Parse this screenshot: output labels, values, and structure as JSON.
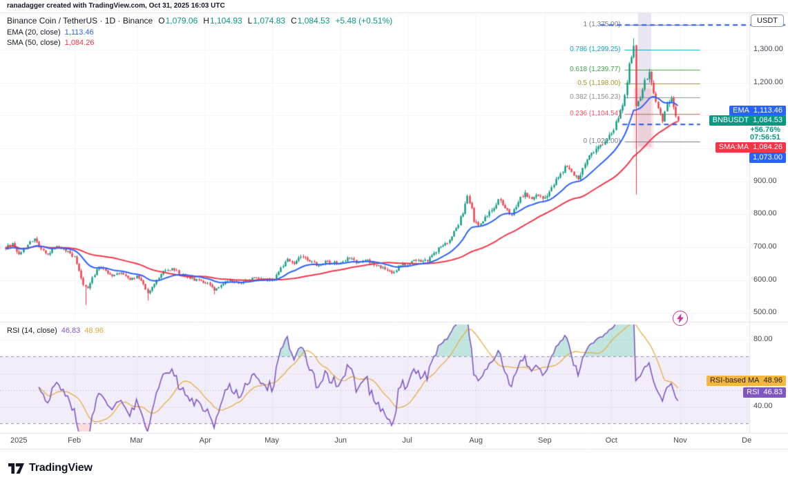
{
  "meta": {
    "attribution": "ranadagger created with TradingView.com, Oct 31, 2025 16:03 UTC"
  },
  "legend": {
    "title": "Binance Coin / TetherUS · 1D · Binance",
    "ohlc": {
      "o_label": "O",
      "o_value": "1,079.06",
      "h_label": "H",
      "h_value": "1,104.93",
      "l_label": "L",
      "l_value": "1,074.83",
      "c_label": "C",
      "c_value": "1,084.53",
      "change": "+5.48 (+0.51%)"
    },
    "ema_label": "EMA (20, close)",
    "ema_value": "1,113.46",
    "sma_label": "SMA (50, close)",
    "sma_value": "1,084.26"
  },
  "rsi_legend": {
    "label": "RSI (14, close)",
    "rsi_value": "46.83",
    "ma_value": "48.96"
  },
  "price_axis": {
    "currency": "USDT",
    "labels": [
      {
        "text": "1,300.00",
        "price": 1300
      },
      {
        "text": "1,200.00",
        "price": 1200
      },
      {
        "text": "900.00",
        "price": 900
      },
      {
        "text": "800.00",
        "price": 800
      },
      {
        "text": "700.00",
        "price": 700
      },
      {
        "text": "600.00",
        "price": 600
      },
      {
        "text": "500.00",
        "price": 500
      }
    ]
  },
  "rsi_axis": {
    "labels": [
      {
        "text": "80.00",
        "value": 80
      },
      {
        "text": "40.00",
        "value": 40
      }
    ]
  },
  "time_axis": {
    "labels": [
      {
        "text": "2025",
        "day": 6
      },
      {
        "text": "Feb",
        "day": 31
      },
      {
        "text": "Mar",
        "day": 59
      },
      {
        "text": "Apr",
        "day": 90
      },
      {
        "text": "May",
        "day": 120
      },
      {
        "text": "Jun",
        "day": 151
      },
      {
        "text": "Jul",
        "day": 181
      },
      {
        "text": "Aug",
        "day": 212
      },
      {
        "text": "Sep",
        "day": 243
      },
      {
        "text": "Oct",
        "day": 273
      },
      {
        "text": "Nov",
        "day": 304
      },
      {
        "text": "De",
        "day": 334
      }
    ]
  },
  "axis_badges": {
    "ema_name": "EMA",
    "ema_value": "1,113.46",
    "symbol_name": "BNBUSDT",
    "symbol_value": "1,084.53",
    "change_pct": "+56.76%",
    "countdown": "07:56:51",
    "sma_name": "SMA:MA",
    "sma_value": "1,084.26",
    "level_value": "1,073.00"
  },
  "rsi_badges": {
    "ma_name": "RSI-based MA",
    "ma_value": "48.96",
    "rsi_name": "RSI",
    "rsi_value": "46.83"
  },
  "footer": {
    "brand": "TradingView"
  },
  "colors": {
    "up": "#089981",
    "down": "#F23645",
    "ema": "#2962FF",
    "sma": "#F23645",
    "rsi": "#7E57C2",
    "rsi_ma": "#E8B14E",
    "drawing_blue": "#1E53E5",
    "grid": "#F0F3FA",
    "border": "#E0E3EB"
  },
  "chart_data": {
    "type": "candlestick",
    "symbol": "BNBUSDT",
    "interval": "1D",
    "title": "Binance Coin / TetherUS, Daily, with EMA(20), SMA(50), Fibonacci retracement and RSI(14) sub-panel",
    "visible_range": "Jan 2025 - Dec 2025",
    "last_close": 1084.53,
    "price_anchors": [
      [
        0,
        695
      ],
      [
        3,
        712
      ],
      [
        6,
        678
      ],
      [
        9,
        698
      ],
      [
        13,
        726
      ],
      [
        16,
        694
      ],
      [
        19,
        678
      ],
      [
        23,
        703
      ],
      [
        27,
        688
      ],
      [
        31,
        672
      ],
      [
        33,
        628
      ],
      [
        35,
        585
      ],
      [
        37,
        575
      ],
      [
        39,
        608
      ],
      [
        42,
        640
      ],
      [
        45,
        628
      ],
      [
        48,
        612
      ],
      [
        52,
        622
      ],
      [
        56,
        600
      ],
      [
        59,
        614
      ],
      [
        61,
        598
      ],
      [
        64,
        560
      ],
      [
        67,
        588
      ],
      [
        71,
        628
      ],
      [
        75,
        636
      ],
      [
        79,
        616
      ],
      [
        83,
        604
      ],
      [
        88,
        598
      ],
      [
        91,
        592
      ],
      [
        94,
        568
      ],
      [
        97,
        584
      ],
      [
        101,
        601
      ],
      [
        105,
        589
      ],
      [
        109,
        599
      ],
      [
        113,
        606
      ],
      [
        118,
        599
      ],
      [
        121,
        602
      ],
      [
        124,
        638
      ],
      [
        127,
        664
      ],
      [
        130,
        649
      ],
      [
        133,
        671
      ],
      [
        137,
        656
      ],
      [
        141,
        644
      ],
      [
        145,
        657
      ],
      [
        149,
        649
      ],
      [
        152,
        656
      ],
      [
        155,
        666
      ],
      [
        158,
        651
      ],
      [
        162,
        661
      ],
      [
        166,
        646
      ],
      [
        170,
        638
      ],
      [
        174,
        621
      ],
      [
        178,
        644
      ],
      [
        182,
        651
      ],
      [
        186,
        661
      ],
      [
        190,
        657
      ],
      [
        193,
        682
      ],
      [
        196,
        702
      ],
      [
        200,
        722
      ],
      [
        203,
        758
      ],
      [
        206,
        802
      ],
      [
        208,
        856
      ],
      [
        210,
        818
      ],
      [
        211,
        777
      ],
      [
        213,
        766
      ],
      [
        216,
        792
      ],
      [
        219,
        812
      ],
      [
        222,
        846
      ],
      [
        225,
        818
      ],
      [
        228,
        796
      ],
      [
        231,
        836
      ],
      [
        234,
        866
      ],
      [
        237,
        846
      ],
      [
        240,
        856
      ],
      [
        243,
        851
      ],
      [
        246,
        882
      ],
      [
        249,
        912
      ],
      [
        252,
        946
      ],
      [
        255,
        928
      ],
      [
        258,
        906
      ],
      [
        261,
        952
      ],
      [
        264,
        986
      ],
      [
        267,
        1006
      ],
      [
        270,
        1022
      ],
      [
        273,
        1046
      ],
      [
        276,
        1092
      ],
      [
        279,
        1162
      ],
      [
        281,
        1258
      ],
      [
        283,
        1312
      ],
      [
        284,
        1128
      ],
      [
        286,
        1152
      ],
      [
        288,
        1208
      ],
      [
        290,
        1232
      ],
      [
        292,
        1168
      ],
      [
        294,
        1122
      ],
      [
        296,
        1082
      ],
      [
        298,
        1136
      ],
      [
        300,
        1152
      ],
      [
        302,
        1098
      ],
      [
        303,
        1084.53
      ]
    ],
    "high_overrides": [
      [
        283,
        1335
      ]
    ],
    "low_overrides": [
      [
        36,
        524
      ],
      [
        64,
        538
      ],
      [
        94,
        556
      ],
      [
        284,
        860
      ]
    ],
    "month_days": [
      31,
      59,
      90,
      120,
      151,
      181,
      212,
      243,
      273,
      304,
      334
    ],
    "indicators": {
      "ema_period": 20,
      "sma_period": 50,
      "rsi_period": 14,
      "rsi_ma_period": 14
    },
    "price_gridlines": [
      500,
      600,
      700,
      800,
      900,
      1000,
      1100,
      1200,
      1300
    ],
    "rsi_gridlines": [
      40,
      60,
      80
    ],
    "rsi_band": [
      30,
      70
    ],
    "rsi_mid": 50,
    "fib": {
      "day_start": 279,
      "day_end": 313,
      "levels": [
        {
          "value": 1,
          "label": "1 (1,375.00)",
          "price": 1375,
          "color": "#787B86"
        },
        {
          "value": 0.786,
          "label": "0.786 (1,299.25)",
          "price": 1299.25,
          "color": "#00ACC1"
        },
        {
          "value": 0.618,
          "label": "0.618 (1,239.77)",
          "price": 1239.77,
          "color": "#43A047"
        },
        {
          "value": 0.5,
          "label": "0.5 (1,198.00)",
          "price": 1198,
          "color": "#9E9D24"
        },
        {
          "value": 0.382,
          "label": "0.382 (1,156.23)",
          "price": 1156.23,
          "color": "#8C9093"
        },
        {
          "value": 0.236,
          "label": "0.236 (1,104.54)",
          "price": 1104.54,
          "color": "#F7525F"
        },
        {
          "value": 0,
          "label": "0 (1,021.00)",
          "price": 1021,
          "color": "#787B86"
        }
      ]
    },
    "overlays": {
      "highlight_band": {
        "day_start": 285,
        "day_end": 291,
        "price_bottom": 1005
      },
      "red_zone": {
        "day_start": 283,
        "day_end": 292,
        "price_top": 1182,
        "price_bottom": 1000
      }
    },
    "drawings": {
      "upper_dashed": {
        "price": 1375,
        "day_start": 268,
        "extends_past_axis": true
      },
      "lower_dashed": {
        "price": 1073,
        "day_start": 278,
        "day_end": 313
      }
    }
  }
}
